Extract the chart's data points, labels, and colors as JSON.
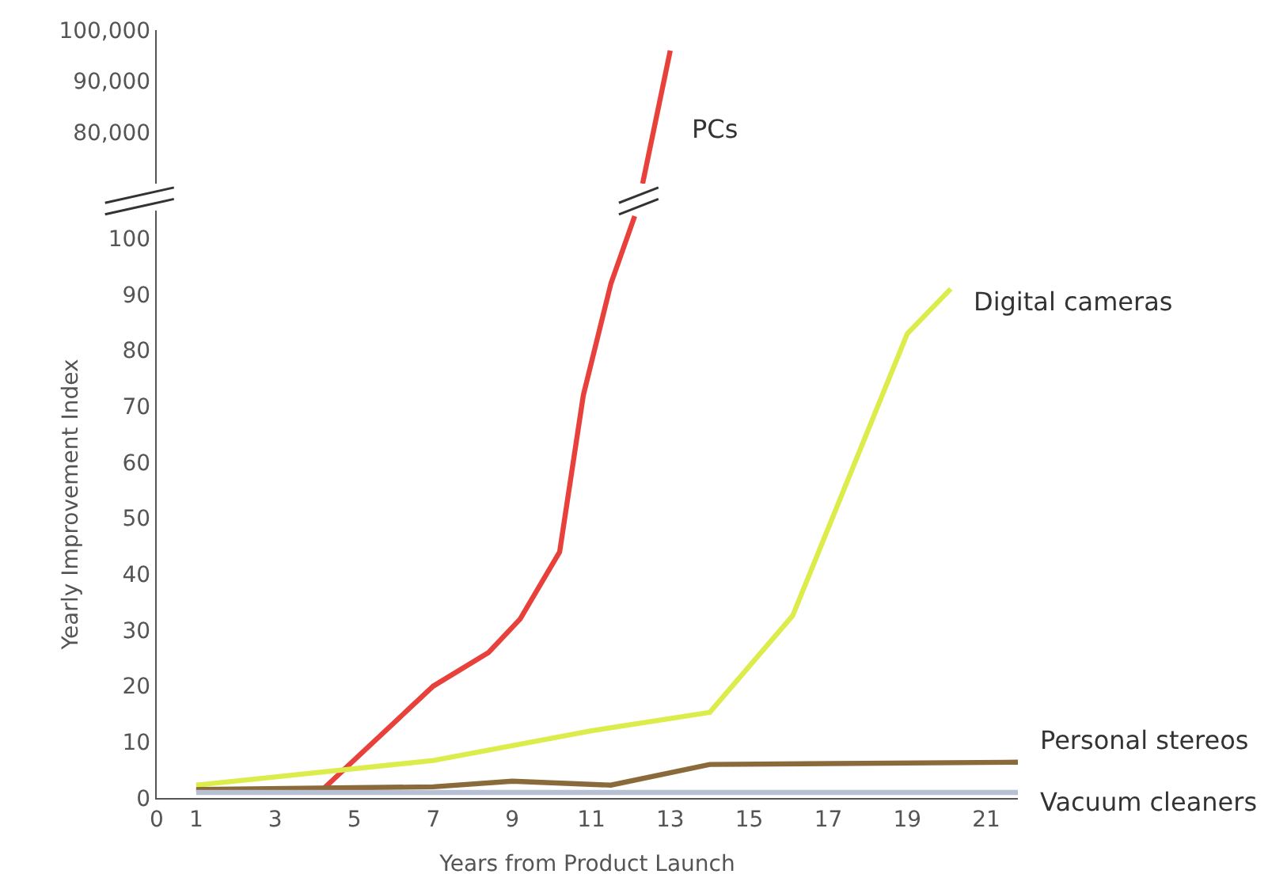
{
  "chart_data": [
    {
      "type": "line",
      "xlim": [
        0,
        21
      ],
      "xticks": [
        0,
        1,
        3,
        5,
        7,
        9,
        11,
        13,
        15,
        17,
        19,
        21
      ],
      "ylim": [
        70000,
        100000
      ],
      "yticks": [
        {
          "value": 80000,
          "label": "80,000"
        },
        {
          "value": 90000,
          "label": "90,000"
        },
        {
          "value": 100000,
          "label": "100,000"
        }
      ],
      "tick_labels": "y",
      "marker": "none",
      "line_style": "solid",
      "series": [
        {
          "name": "PCs",
          "color": "#e8403a",
          "x": [
            12.3,
            13
          ],
          "values": [
            70000,
            96000
          ]
        }
      ]
    },
    {
      "type": "line",
      "xlabel": "Years from Product Launch",
      "ylabel": "Yearly Improvement Index",
      "xlim": [
        0,
        21.8
      ],
      "xticks": [
        0,
        1,
        3,
        5,
        7,
        9,
        11,
        13,
        15,
        17,
        19,
        21
      ],
      "ylim": [
        0,
        105
      ],
      "yticks": [
        0,
        10,
        20,
        30,
        40,
        50,
        60,
        70,
        80,
        90,
        100
      ],
      "marker": "none",
      "line_style": "solid",
      "series": [
        {
          "color": "#e8403a",
          "x": [
            1,
            4.2,
            7,
            8.4,
            9.2,
            10.2,
            10.8,
            11.5,
            12.1
          ],
          "values": [
            1.5,
            1.5,
            20,
            26,
            32,
            44,
            72,
            92,
            104
          ]
        },
        {
          "name": "Digital cameras",
          "color": "#dcec4a",
          "x": [
            1,
            7,
            11,
            14,
            16.1,
            19,
            20.1
          ],
          "values": [
            2.3,
            6.7,
            12,
            15.3,
            32.6,
            83,
            91
          ]
        },
        {
          "name": "Personal stereos",
          "color": "#8a6a3a",
          "x": [
            1,
            7,
            9,
            11.5,
            14,
            21.8
          ],
          "values": [
            1.5,
            2,
            3,
            2.3,
            6,
            6.4
          ]
        },
        {
          "name": "Vacuum cleaners",
          "color": "#b8c0d4",
          "x": [
            1,
            21.8
          ],
          "values": [
            1,
            1
          ]
        }
      ]
    }
  ]
}
